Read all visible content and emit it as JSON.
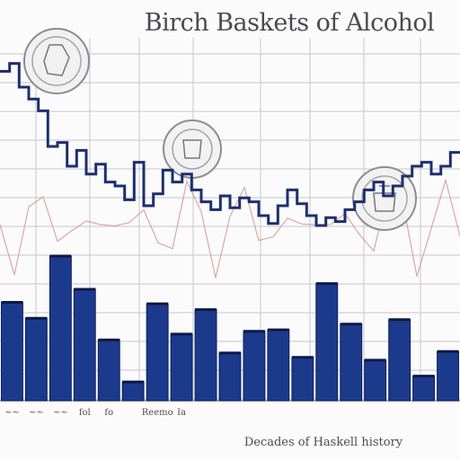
{
  "chart_data": {
    "type": "bar",
    "title": "Birch Baskets of Alcohol",
    "xlabel": "Decades of Haskell history",
    "ylabel": "",
    "grid": true,
    "legend": "none",
    "ylim": [
      0,
      100
    ],
    "categories": [
      "",
      "",
      "",
      "",
      "",
      "",
      "",
      "",
      "",
      "",
      "",
      "",
      "",
      "",
      "",
      "",
      "",
      "",
      ""
    ],
    "x_tick_labels": [
      "~~",
      "~~",
      "~~",
      "fol",
      "fo",
      "",
      "Reemo",
      "Ia",
      "",
      "",
      "",
      "",
      "",
      "",
      "",
      "",
      "",
      "",
      ""
    ],
    "series": [
      {
        "values": [
          68,
          57,
          100,
          77,
          42,
          13,
          67,
          46,
          63,
          33,
          48,
          49,
          30,
          81,
          53,
          28,
          56,
          17,
          34
        ],
        "color": "#1c3a8c"
      }
    ],
    "line_series": {
      "ylim": [
        0,
        100
      ],
      "color": "#1c2f6f",
      "values": [
        22,
        18,
        30,
        36,
        42,
        60,
        58,
        70,
        62,
        74,
        69,
        78,
        80,
        87,
        68,
        90,
        84,
        72,
        78,
        74,
        82,
        88,
        92,
        85,
        91,
        86,
        88,
        95,
        99,
        90,
        82,
        89,
        95,
        100,
        96,
        98,
        92,
        88,
        82,
        78,
        85,
        80,
        75,
        70,
        68,
        74,
        70,
        63
      ]
    },
    "accent_color": "#d48a8a",
    "grid_color": "#c7c7cc"
  }
}
